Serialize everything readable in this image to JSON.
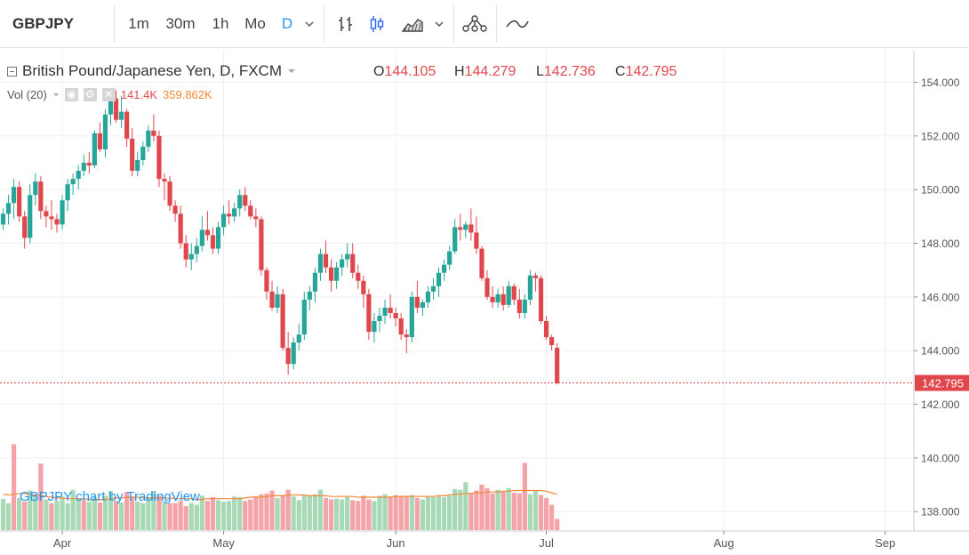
{
  "toolbar": {
    "symbol": "GBPJPY",
    "intervals": [
      "1m",
      "30m",
      "1h",
      "Mo",
      "D"
    ],
    "active_interval": "D",
    "icons": [
      "chevron-down-icon",
      "bar-chart-type-icon",
      "candles-chart-type-icon",
      "area-chart-type-icon",
      "chevron-down-icon",
      "compare-icon",
      "indicators-icon"
    ]
  },
  "legend": {
    "title": "British Pound/Japanese Yen, D, FXCM",
    "o_label": "O",
    "o_value": "144.105",
    "h_label": "H",
    "h_value": "144.279",
    "l_label": "L",
    "l_value": "142.736",
    "c_label": "C",
    "c_value": "142.795"
  },
  "volume_legend": {
    "label": "Vol (20)",
    "value1": "141.4K",
    "value2": "359.862K"
  },
  "watermark": "GBPJPY chart by TradingView",
  "colors": {
    "up": "#26a69a",
    "down": "#e0474c",
    "up_vol": "#a8d9b7",
    "down_vol": "#f4a3a8",
    "ma": "#f4893a",
    "last_price": "#e0474c"
  },
  "chart_data": {
    "type": "candlestick",
    "price_axis": {
      "min": 137.0,
      "max": 155.0,
      "ticks": [
        "154.000",
        "152.000",
        "150.000",
        "148.000",
        "146.000",
        "144.000",
        "142.000",
        "140.000",
        "138.000"
      ]
    },
    "last_price": "142.795",
    "x_labels": [
      {
        "label": "Apr",
        "index": 11
      },
      {
        "label": "May",
        "index": 41
      },
      {
        "label": "Jun",
        "index": 73
      },
      {
        "label": "Jul",
        "index": 101
      },
      {
        "label": "Aug",
        "index": 134
      },
      {
        "label": "Sep",
        "index": 164
      }
    ],
    "candles": [
      [
        148.7,
        149.3,
        148.5,
        149.1
      ],
      [
        149.1,
        149.8,
        148.7,
        149.5
      ],
      [
        149.5,
        150.4,
        148.9,
        150.1
      ],
      [
        150.1,
        150.3,
        148.8,
        149.0
      ],
      [
        149.0,
        149.2,
        147.8,
        148.2
      ],
      [
        148.2,
        150.2,
        148.0,
        149.8
      ],
      [
        149.8,
        150.6,
        149.4,
        150.3
      ],
      [
        150.3,
        150.5,
        148.9,
        149.2
      ],
      [
        149.2,
        149.4,
        148.6,
        149.0
      ],
      [
        149.0,
        149.6,
        148.5,
        148.9
      ],
      [
        148.9,
        149.1,
        148.4,
        148.7
      ],
      [
        148.7,
        149.8,
        148.5,
        149.6
      ],
      [
        149.6,
        150.4,
        149.2,
        150.2
      ],
      [
        150.2,
        150.6,
        149.8,
        150.4
      ],
      [
        150.4,
        150.9,
        150.0,
        150.7
      ],
      [
        150.7,
        151.3,
        150.5,
        151.0
      ],
      [
        151.0,
        151.4,
        150.6,
        150.9
      ],
      [
        150.9,
        152.2,
        150.8,
        152.1
      ],
      [
        152.1,
        152.5,
        151.4,
        151.5
      ],
      [
        151.5,
        153.0,
        151.2,
        152.8
      ],
      [
        152.8,
        153.6,
        152.4,
        153.4
      ],
      [
        153.4,
        153.7,
        152.5,
        152.6
      ],
      [
        152.6,
        153.5,
        152.3,
        152.9
      ],
      [
        152.9,
        153.0,
        151.6,
        151.9
      ],
      [
        151.9,
        152.3,
        150.5,
        150.7
      ],
      [
        150.7,
        151.4,
        150.5,
        151.1
      ],
      [
        151.1,
        151.8,
        150.9,
        151.6
      ],
      [
        151.6,
        152.4,
        151.4,
        152.2
      ],
      [
        152.2,
        152.8,
        151.8,
        152.0
      ],
      [
        152.0,
        152.2,
        150.1,
        150.4
      ],
      [
        150.4,
        150.6,
        149.6,
        150.3
      ],
      [
        150.3,
        150.5,
        149.2,
        149.4
      ],
      [
        149.4,
        149.6,
        148.8,
        149.1
      ],
      [
        149.1,
        149.4,
        147.8,
        148.0
      ],
      [
        148.0,
        148.3,
        147.1,
        147.4
      ],
      [
        147.4,
        148.0,
        147.0,
        147.6
      ],
      [
        147.6,
        148.2,
        147.3,
        147.9
      ],
      [
        147.9,
        149.0,
        147.7,
        148.5
      ],
      [
        148.5,
        149.2,
        148.1,
        148.3
      ],
      [
        148.3,
        148.6,
        147.6,
        147.8
      ],
      [
        147.8,
        148.8,
        147.6,
        148.6
      ],
      [
        148.6,
        149.4,
        148.3,
        149.1
      ],
      [
        149.1,
        149.6,
        148.7,
        149.0
      ],
      [
        149.0,
        149.5,
        148.8,
        149.3
      ],
      [
        149.3,
        150.0,
        149.0,
        149.8
      ],
      [
        149.8,
        150.1,
        149.2,
        149.4
      ],
      [
        149.4,
        149.6,
        148.9,
        149.0
      ],
      [
        149.0,
        149.3,
        148.6,
        148.9
      ],
      [
        148.9,
        149.0,
        146.8,
        147.0
      ],
      [
        147.0,
        147.1,
        145.9,
        146.2
      ],
      [
        146.2,
        146.6,
        145.5,
        145.6
      ],
      [
        145.6,
        146.4,
        145.4,
        146.1
      ],
      [
        146.1,
        146.3,
        144.0,
        144.1
      ],
      [
        144.1,
        144.7,
        143.1,
        143.5
      ],
      [
        143.5,
        144.5,
        143.3,
        144.3
      ],
      [
        144.3,
        145.0,
        144.0,
        144.6
      ],
      [
        144.6,
        146.2,
        144.4,
        145.9
      ],
      [
        145.9,
        146.4,
        145.5,
        146.2
      ],
      [
        146.2,
        147.1,
        145.8,
        146.9
      ],
      [
        146.9,
        147.8,
        146.6,
        147.6
      ],
      [
        147.6,
        148.1,
        146.9,
        147.1
      ],
      [
        147.1,
        147.4,
        146.2,
        146.6
      ],
      [
        146.6,
        147.3,
        146.3,
        147.1
      ],
      [
        147.1,
        147.6,
        146.8,
        147.4
      ],
      [
        147.4,
        148.0,
        147.1,
        147.6
      ],
      [
        147.6,
        148.0,
        146.7,
        146.9
      ],
      [
        146.9,
        147.2,
        146.3,
        146.6
      ],
      [
        146.6,
        146.8,
        145.6,
        146.1
      ],
      [
        146.1,
        146.3,
        144.4,
        144.7
      ],
      [
        144.7,
        145.4,
        144.3,
        145.1
      ],
      [
        145.1,
        145.6,
        144.7,
        145.3
      ],
      [
        145.3,
        145.9,
        145.0,
        145.6
      ],
      [
        145.6,
        146.1,
        145.2,
        145.4
      ],
      [
        145.4,
        145.6,
        144.9,
        145.2
      ],
      [
        145.2,
        145.4,
        144.4,
        144.6
      ],
      [
        144.6,
        144.8,
        143.9,
        144.5
      ],
      [
        144.5,
        146.2,
        144.3,
        146.0
      ],
      [
        146.0,
        146.6,
        145.4,
        145.6
      ],
      [
        145.6,
        145.9,
        145.3,
        145.8
      ],
      [
        145.8,
        146.4,
        145.6,
        146.2
      ],
      [
        146.2,
        146.7,
        145.9,
        146.4
      ],
      [
        146.4,
        147.1,
        146.0,
        146.9
      ],
      [
        146.9,
        147.4,
        146.6,
        147.2
      ],
      [
        147.2,
        147.9,
        147.0,
        147.7
      ],
      [
        147.7,
        148.9,
        147.6,
        148.6
      ],
      [
        148.6,
        149.1,
        148.1,
        148.5
      ],
      [
        148.5,
        148.8,
        148.2,
        148.7
      ],
      [
        148.7,
        149.3,
        148.1,
        148.4
      ],
      [
        148.4,
        149.0,
        147.6,
        147.8
      ],
      [
        147.8,
        147.9,
        146.6,
        146.7
      ],
      [
        146.7,
        147.0,
        145.9,
        146.0
      ],
      [
        146.0,
        146.4,
        145.6,
        145.8
      ],
      [
        145.8,
        146.3,
        145.6,
        146.1
      ],
      [
        146.1,
        146.4,
        145.5,
        145.7
      ],
      [
        145.7,
        146.6,
        145.6,
        146.4
      ],
      [
        146.4,
        146.5,
        145.7,
        145.9
      ],
      [
        145.9,
        146.3,
        145.2,
        145.4
      ],
      [
        145.4,
        146.1,
        145.2,
        145.9
      ],
      [
        145.9,
        147.0,
        145.7,
        146.8
      ],
      [
        146.8,
        146.9,
        146.2,
        146.7
      ],
      [
        146.7,
        146.8,
        145.0,
        145.1
      ],
      [
        145.1,
        145.3,
        144.4,
        144.5
      ],
      [
        144.5,
        144.6,
        144.0,
        144.2
      ],
      [
        144.105,
        144.279,
        142.736,
        142.795
      ]
    ],
    "volumes": [
      [
        4.2,
        "u"
      ],
      [
        3.6,
        "u"
      ],
      [
        11.5,
        "d"
      ],
      [
        4.3,
        "u"
      ],
      [
        3.8,
        "d"
      ],
      [
        5.3,
        "u"
      ],
      [
        4.6,
        "u"
      ],
      [
        8.9,
        "d"
      ],
      [
        4.1,
        "u"
      ],
      [
        3.6,
        "d"
      ],
      [
        3.9,
        "u"
      ],
      [
        4.5,
        "u"
      ],
      [
        3.6,
        "u"
      ],
      [
        5.4,
        "u"
      ],
      [
        4.2,
        "u"
      ],
      [
        4.0,
        "d"
      ],
      [
        3.8,
        "u"
      ],
      [
        4.4,
        "u"
      ],
      [
        3.7,
        "d"
      ],
      [
        4.6,
        "u"
      ],
      [
        5.2,
        "u"
      ],
      [
        3.9,
        "d"
      ],
      [
        3.7,
        "u"
      ],
      [
        5.1,
        "d"
      ],
      [
        4.4,
        "d"
      ],
      [
        3.8,
        "u"
      ],
      [
        3.6,
        "u"
      ],
      [
        4.4,
        "u"
      ],
      [
        5.2,
        "u"
      ],
      [
        4.6,
        "d"
      ],
      [
        3.9,
        "u"
      ],
      [
        3.6,
        "d"
      ],
      [
        3.6,
        "d"
      ],
      [
        3.9,
        "d"
      ],
      [
        3.2,
        "d"
      ],
      [
        3.6,
        "u"
      ],
      [
        3.4,
        "u"
      ],
      [
        4.6,
        "u"
      ],
      [
        3.9,
        "d"
      ],
      [
        4.4,
        "d"
      ],
      [
        4.0,
        "u"
      ],
      [
        3.8,
        "u"
      ],
      [
        3.9,
        "u"
      ],
      [
        4.5,
        "u"
      ],
      [
        4.4,
        "u"
      ],
      [
        3.9,
        "d"
      ],
      [
        4.1,
        "d"
      ],
      [
        4.5,
        "d"
      ],
      [
        4.8,
        "d"
      ],
      [
        4.9,
        "d"
      ],
      [
        5.3,
        "d"
      ],
      [
        4.3,
        "u"
      ],
      [
        4.7,
        "d"
      ],
      [
        5.4,
        "d"
      ],
      [
        4.5,
        "u"
      ],
      [
        4.0,
        "u"
      ],
      [
        4.6,
        "u"
      ],
      [
        4.6,
        "u"
      ],
      [
        4.8,
        "u"
      ],
      [
        5.4,
        "u"
      ],
      [
        4.3,
        "d"
      ],
      [
        4.1,
        "d"
      ],
      [
        4.2,
        "u"
      ],
      [
        4.1,
        "u"
      ],
      [
        4.4,
        "u"
      ],
      [
        4.0,
        "d"
      ],
      [
        3.9,
        "d"
      ],
      [
        4.6,
        "d"
      ],
      [
        4.1,
        "d"
      ],
      [
        3.9,
        "u"
      ],
      [
        4.6,
        "u"
      ],
      [
        4.8,
        "u"
      ],
      [
        4.5,
        "d"
      ],
      [
        4.7,
        "d"
      ],
      [
        4.6,
        "d"
      ],
      [
        4.6,
        "d"
      ],
      [
        4.7,
        "u"
      ],
      [
        4.3,
        "d"
      ],
      [
        4.1,
        "u"
      ],
      [
        4.5,
        "u"
      ],
      [
        4.4,
        "u"
      ],
      [
        4.5,
        "u"
      ],
      [
        4.4,
        "u"
      ],
      [
        4.6,
        "u"
      ],
      [
        5.5,
        "u"
      ],
      [
        5.4,
        "u"
      ],
      [
        6.4,
        "u"
      ],
      [
        5.0,
        "d"
      ],
      [
        5.3,
        "d"
      ],
      [
        6.1,
        "d"
      ],
      [
        5.6,
        "d"
      ],
      [
        4.9,
        "d"
      ],
      [
        5.4,
        "u"
      ],
      [
        5.2,
        "d"
      ],
      [
        5.6,
        "u"
      ],
      [
        5.0,
        "d"
      ],
      [
        4.9,
        "d"
      ],
      [
        9.0,
        "d"
      ],
      [
        4.8,
        "u"
      ],
      [
        5.3,
        "u"
      ],
      [
        4.7,
        "d"
      ],
      [
        4.3,
        "d"
      ],
      [
        3.4,
        "d"
      ],
      [
        1.5,
        "d"
      ]
    ],
    "volume_ma": [
      4.8,
      4.7,
      4.8,
      4.9,
      4.9,
      4.8,
      4.7,
      4.6,
      4.5,
      4.4,
      4.3,
      4.3,
      4.2,
      4.2,
      4.2,
      4.2,
      4.1,
      4.1,
      4.1,
      4.1,
      4.2,
      4.3,
      4.3,
      4.4,
      4.4,
      4.4,
      4.3,
      4.3,
      4.3,
      4.3,
      4.3,
      4.3,
      4.2,
      4.2,
      4.2,
      4.2,
      4.1,
      4.1,
      4.2,
      4.2,
      4.2,
      4.2,
      4.2,
      4.2,
      4.2,
      4.3,
      4.4,
      4.4,
      4.4,
      4.5,
      4.6,
      4.6,
      4.6,
      4.7,
      4.7,
      4.7,
      4.7,
      4.6,
      4.6,
      4.6,
      4.6,
      4.5,
      4.5,
      4.5,
      4.5,
      4.5,
      4.4,
      4.4,
      4.4,
      4.4,
      4.4,
      4.4,
      4.4,
      4.5,
      4.5,
      4.5,
      4.5,
      4.5,
      4.5,
      4.5,
      4.5,
      4.6,
      4.6,
      4.7,
      4.8,
      4.8,
      4.9,
      4.9,
      5.0,
      5.0,
      5.1,
      5.1,
      5.1,
      5.2,
      5.2,
      5.3,
      5.3,
      5.3,
      5.3,
      5.3,
      5.3,
      5.2,
      5.0,
      4.8
    ]
  }
}
